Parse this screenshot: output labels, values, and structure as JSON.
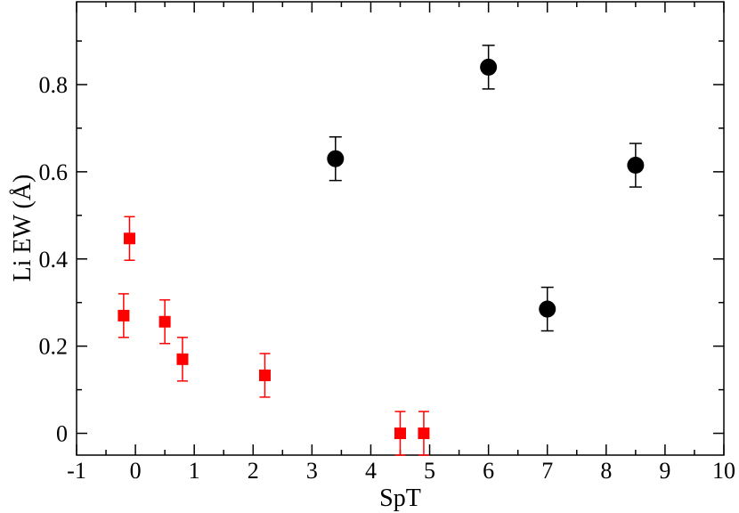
{
  "chart_data": {
    "type": "scatter",
    "xlabel": "SpT",
    "ylabel": "Li EW (Å)",
    "xlim": [
      -1,
      10
    ],
    "ylim": [
      -0.05,
      0.99
    ],
    "x_ticks": [
      -1,
      0,
      1,
      2,
      3,
      4,
      5,
      6,
      7,
      8,
      9,
      10
    ],
    "y_ticks": [
      0,
      0.2,
      0.4,
      0.6,
      0.8
    ],
    "x_tick_labels": [
      "-1",
      "0",
      "1",
      "2",
      "3",
      "4",
      "5",
      "6",
      "7",
      "8",
      "9",
      "10"
    ],
    "y_tick_labels": [
      "0",
      "0.2",
      "0.4",
      "0.6",
      "0.8"
    ],
    "grid": false,
    "legend": "none",
    "series": [
      {
        "marker": "square",
        "color": "#ff0000",
        "points": [
          {
            "x": -0.2,
            "y": 0.27,
            "err": 0.05
          },
          {
            "x": -0.1,
            "y": 0.447,
            "err": 0.05
          },
          {
            "x": 0.5,
            "y": 0.256,
            "err": 0.05
          },
          {
            "x": 0.8,
            "y": 0.17,
            "err": 0.05
          },
          {
            "x": 2.2,
            "y": 0.133,
            "err": 0.05
          },
          {
            "x": 4.5,
            "y": 0.0,
            "err": 0.05
          },
          {
            "x": 4.9,
            "y": 0.0,
            "err": 0.05
          }
        ]
      },
      {
        "marker": "circle",
        "color": "#000000",
        "points": [
          {
            "x": 3.4,
            "y": 0.63,
            "err": 0.05
          },
          {
            "x": 6.0,
            "y": 0.84,
            "err": 0.05
          },
          {
            "x": 7.0,
            "y": 0.285,
            "err": 0.05
          },
          {
            "x": 8.5,
            "y": 0.615,
            "err": 0.05
          }
        ]
      }
    ]
  }
}
